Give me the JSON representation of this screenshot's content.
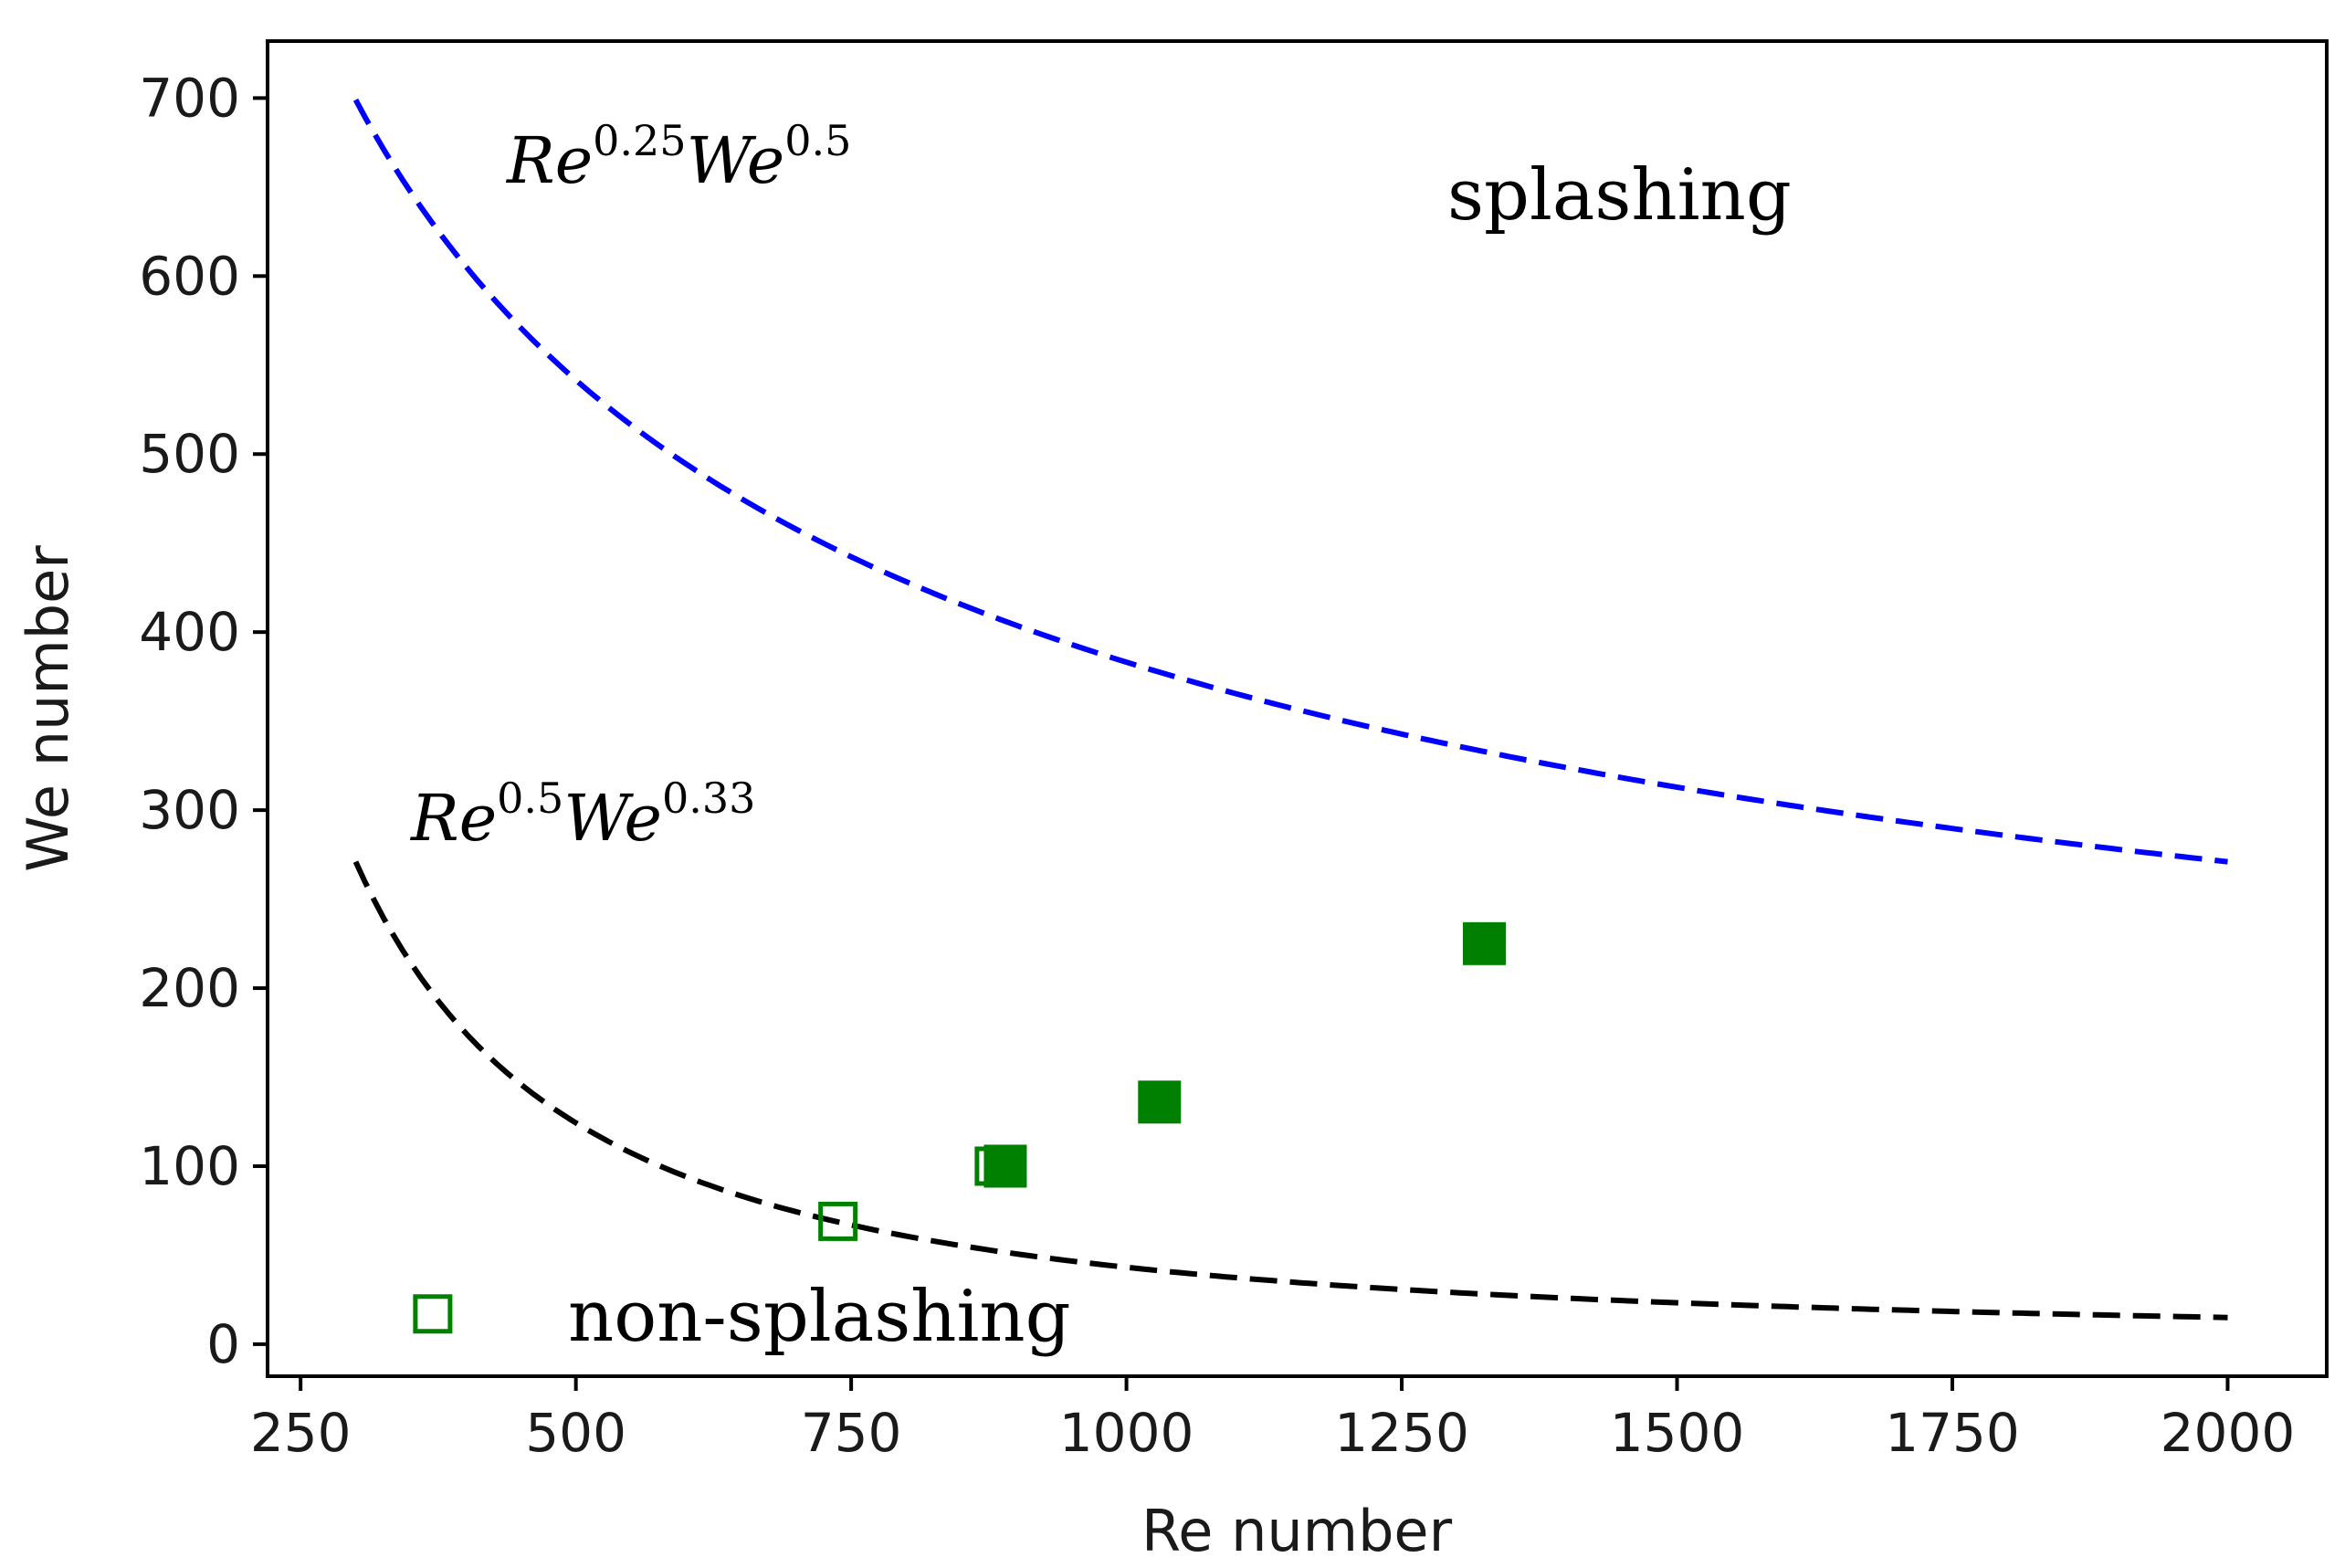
{
  "chart_data": {
    "type": "scatter",
    "xlabel": "Re number",
    "ylabel": "We number",
    "xlim": [
      220,
      2090
    ],
    "ylim": [
      -18,
      732
    ],
    "x_ticks": [
      250,
      500,
      750,
      1000,
      1250,
      1500,
      1750,
      2000
    ],
    "y_ticks": [
      0,
      100,
      200,
      300,
      400,
      500,
      600,
      700
    ],
    "grid": false,
    "annotations": {
      "splashing": "splashing",
      "non_splashing": "non-splashing",
      "criterion_upper": {
        "base1": "Re",
        "exp1": "0.25",
        "base2": "We",
        "exp2": "0.5"
      },
      "criterion_lower": {
        "base1": "Re",
        "exp1": "0.5",
        "base2": "We",
        "exp2": "0.33"
      }
    },
    "curves": [
      {
        "kind": "Re^0.25 We^0.5 threshold",
        "color": "#0000ff",
        "dash": "dashed",
        "x_range": [
          300,
          2000
        ],
        "x": [
          300,
          400,
          500,
          600,
          750,
          900,
          1000,
          1250,
          1500,
          1750,
          2000
        ],
        "y": [
          699,
          605,
          541,
          494,
          442,
          404,
          383,
          343,
          313,
          290,
          271
        ]
      },
      {
        "kind": "Re^0.5 We^0.33 threshold",
        "color": "#000000",
        "dash": "dashed",
        "x_range": [
          300,
          2000
        ],
        "x": [
          300,
          400,
          500,
          600,
          750,
          900,
          1000,
          1250,
          1500,
          1750,
          2000
        ],
        "y": [
          271,
          175,
          125,
          96,
          68,
          52,
          43,
          31,
          24,
          19,
          15
        ]
      }
    ],
    "series": [
      {
        "marker": "hollow-square",
        "color": "#008000",
        "points": [
          [
            370,
            17
          ],
          [
            738,
            69
          ],
          [
            880,
            100
          ]
        ]
      },
      {
        "marker": "filled-square",
        "color": "#008000",
        "points": [
          [
            890,
            100
          ],
          [
            1030,
            136
          ],
          [
            1325,
            225
          ]
        ]
      }
    ]
  }
}
